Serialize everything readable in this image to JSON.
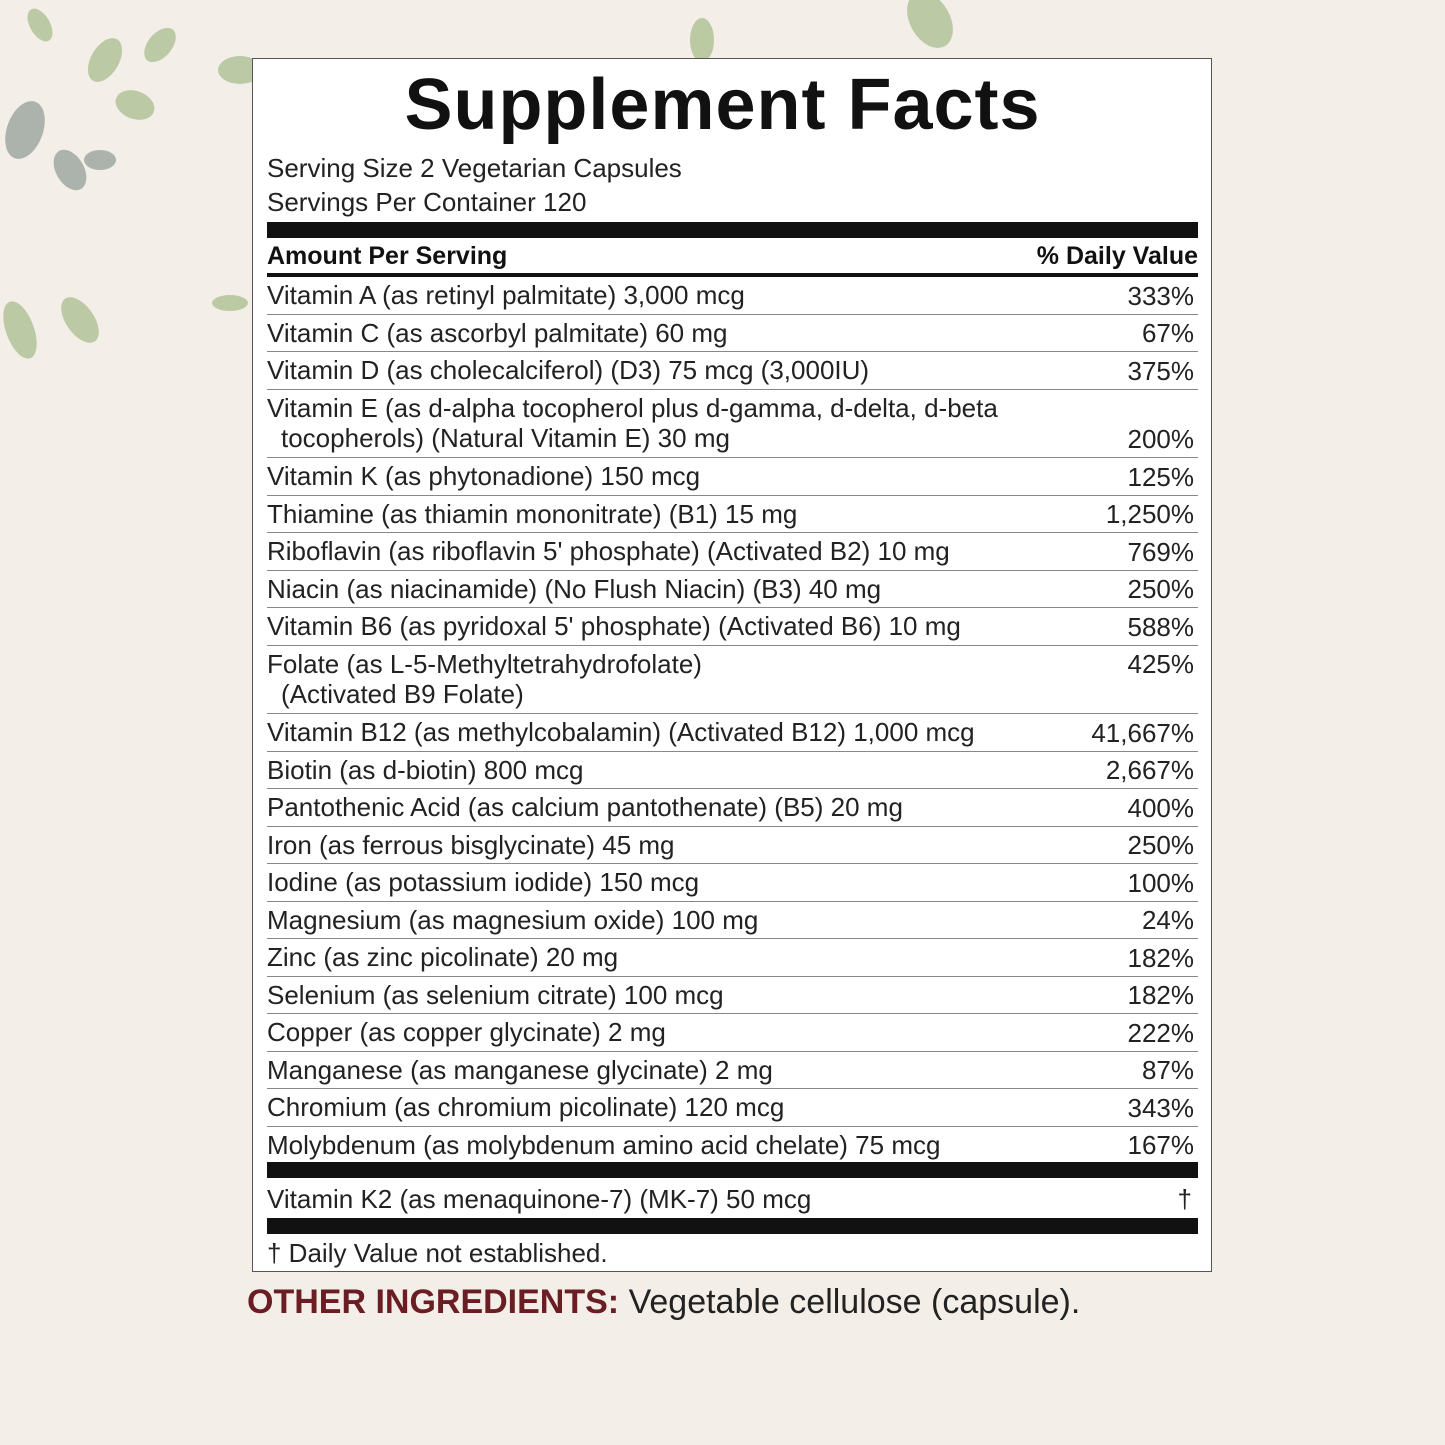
{
  "header": {
    "title": "Supplement Facts",
    "serving_size": "Serving Size 2 Vegetarian Capsules",
    "servings_per_container": "Servings Per Container 120"
  },
  "table": {
    "columns": [
      "Amount Per Serving",
      "% Daily Value"
    ],
    "rows": [
      {
        "name": [
          "Vitamin A (as retinyl palmitate) 3,000 mcg"
        ],
        "dv": "333%"
      },
      {
        "name": [
          "Vitamin C (as ascorbyl palmitate) 60 mg"
        ],
        "dv": "67%"
      },
      {
        "name": [
          "Vitamin D (as cholecalciferol) (D3) 75 mcg (3,000IU)"
        ],
        "dv": "375%"
      },
      {
        "name": [
          "Vitamin E (as d-alpha tocopherol plus d-gamma, d-delta, d-beta",
          "tocopherols) (Natural Vitamin E) 30 mg"
        ],
        "dv": "200%"
      },
      {
        "name": [
          "Vitamin K (as phytonadione) 150 mcg"
        ],
        "dv": "125%"
      },
      {
        "name": [
          "Thiamine (as thiamin mononitrate) (B1) 15 mg"
        ],
        "dv": "1,250%"
      },
      {
        "name": [
          "Riboflavin (as riboflavin 5' phosphate) (Activated B2) 10 mg"
        ],
        "dv": "769%"
      },
      {
        "name": [
          "Niacin (as niacinamide) (No Flush Niacin) (B3) 40 mg"
        ],
        "dv": "250%"
      },
      {
        "name": [
          "Vitamin B6 (as pyridoxal 5' phosphate) (Activated B6) 10 mg"
        ],
        "dv": "588%"
      },
      {
        "name": [
          "Folate (as L-5-Methyltetrahydrofolate)",
          "(Activated B9 Folate)"
        ],
        "dv": "425%"
      },
      {
        "name": [
          "Vitamin B12 (as methylcobalamin) (Activated B12) 1,000 mcg"
        ],
        "dv": "41,667%"
      },
      {
        "name": [
          "Biotin (as d-biotin) 800 mcg"
        ],
        "dv": "2,667%"
      },
      {
        "name": [
          "Pantothenic Acid (as calcium pantothenate) (B5) 20 mg"
        ],
        "dv": "400%"
      },
      {
        "name": [
          "Iron (as ferrous bisglycinate) 45 mg"
        ],
        "dv": "250%"
      },
      {
        "name": [
          "Iodine (as potassium iodide) 150 mcg"
        ],
        "dv": "100%"
      },
      {
        "name": [
          "Magnesium (as magnesium oxide) 100 mg"
        ],
        "dv": "24%"
      },
      {
        "name": [
          "Zinc (as zinc picolinate) 20 mg"
        ],
        "dv": "182%"
      },
      {
        "name": [
          "Selenium (as selenium citrate) 100 mcg"
        ],
        "dv": "182%"
      },
      {
        "name": [
          "Copper (as copper glycinate) 2 mg"
        ],
        "dv": "222%"
      },
      {
        "name": [
          "Manganese (as manganese glycinate) 2 mg"
        ],
        "dv": "87%"
      },
      {
        "name": [
          "Chromium (as chromium picolinate) 120 mcg"
        ],
        "dv": "343%"
      },
      {
        "name": [
          "Molybdenum (as molybdenum amino acid chelate) 75 mcg"
        ],
        "dv": "167%"
      }
    ],
    "extra": {
      "name": "Vitamin K2 (as menaquinone-7) (MK-7) 50 mcg",
      "dv": "†"
    },
    "footnote": "† Daily Value not established."
  },
  "other_ingredients": {
    "label": "OTHER INGREDIENTS:",
    "text": "Vegetable cellulose (capsule)."
  }
}
